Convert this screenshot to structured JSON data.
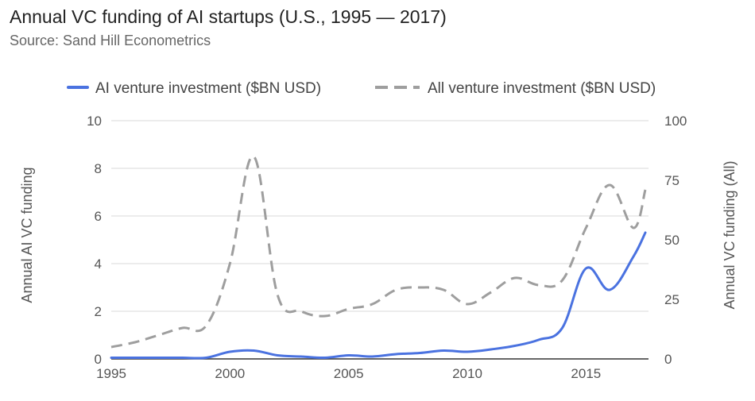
{
  "chart_data": {
    "type": "line",
    "title": "Annual VC funding of AI startups (U.S., 1995 — 2017)",
    "subtitle": "Source: Sand Hill Econometrics",
    "xlim": [
      1995,
      2017.5
    ],
    "x_ticks": [
      1995,
      2000,
      2005,
      2010,
      2015
    ],
    "ylabel": "Annual AI VC funding",
    "ylim": [
      0,
      10
    ],
    "y_ticks": [
      0,
      2,
      4,
      6,
      8,
      10
    ],
    "y2label": "Annual VC funding (All)",
    "y2lim": [
      0,
      100
    ],
    "y2_ticks": [
      0,
      25,
      50,
      75,
      100
    ],
    "grid": true,
    "legend_position": "top",
    "series": [
      {
        "name": "AI venture investment ($BN USD)",
        "axis": "left",
        "color": "#4a72e0",
        "style": "solid",
        "x": [
          1995,
          1996,
          1997,
          1998,
          1999,
          2000,
          2001,
          2002,
          2003,
          2004,
          2005,
          2006,
          2007,
          2008,
          2009,
          2010,
          2011,
          2012,
          2013,
          2014,
          2015,
          2016,
          2017,
          2017.5
        ],
        "values": [
          0.05,
          0.05,
          0.05,
          0.05,
          0.05,
          0.3,
          0.35,
          0.15,
          0.1,
          0.05,
          0.15,
          0.1,
          0.2,
          0.25,
          0.35,
          0.3,
          0.4,
          0.55,
          0.8,
          1.3,
          3.8,
          2.9,
          4.3,
          5.3
        ]
      },
      {
        "name": "All venture investment ($BN USD)",
        "axis": "right",
        "color": "#9e9e9e",
        "style": "dashed",
        "x": [
          1995,
          1996,
          1997,
          1998,
          1999,
          2000,
          2001,
          2002,
          2003,
          2004,
          2005,
          2006,
          2007,
          2008,
          2009,
          2010,
          2011,
          2012,
          2013,
          2014,
          2015,
          2016,
          2017,
          2017.5
        ],
        "values": [
          5,
          7,
          10,
          13,
          14,
          40,
          85,
          27,
          20,
          18,
          21,
          23,
          29,
          30,
          29,
          23,
          28,
          34,
          31,
          33,
          55,
          73,
          55,
          71
        ]
      }
    ]
  }
}
